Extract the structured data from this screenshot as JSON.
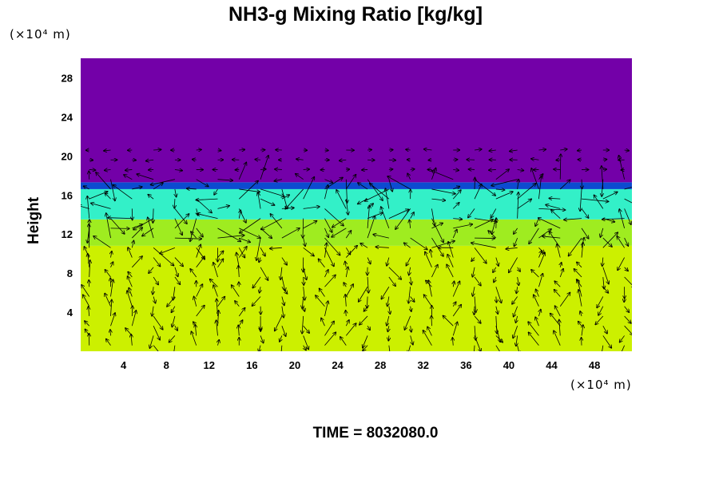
{
  "chart_data": {
    "type": "heatmap",
    "title": "NH3-g Mixing Ratio [kg/kg]",
    "ylabel": "Height",
    "xlabel": "",
    "x_unit": "(×10⁴ m)",
    "y_unit": "(×10⁴ m)",
    "xlim": [
      0,
      51.5
    ],
    "ylim": [
      0,
      30
    ],
    "x_ticks": [
      4,
      8,
      12,
      16,
      20,
      24,
      28,
      32,
      36,
      40,
      44,
      48
    ],
    "y_ticks": [
      4,
      8,
      12,
      16,
      20,
      24,
      28
    ],
    "layers": [
      {
        "from": 0,
        "to": 10.8,
        "color": "#ccf000"
      },
      {
        "from": 10.8,
        "to": 13.5,
        "color": "#9fec20"
      },
      {
        "from": 13.5,
        "to": 16.6,
        "color": "#33f0c8"
      },
      {
        "from": 16.6,
        "to": 17.3,
        "color": "#0c4bd0"
      },
      {
        "from": 17.3,
        "to": 30,
        "color": "#7300a8"
      }
    ],
    "wind_vectors": true,
    "grid": false
  },
  "footer": {
    "time_label": "TIME = 8032080.0"
  }
}
